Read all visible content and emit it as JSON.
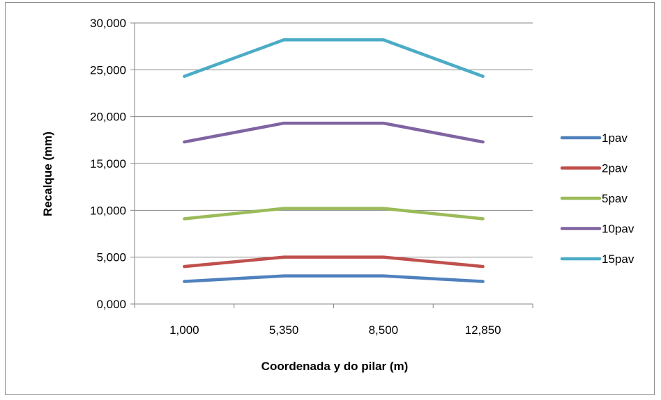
{
  "chart_data": {
    "type": "line",
    "title": "",
    "xlabel": "Coordenada y do pilar (m)",
    "ylabel": "Recalque (mm)",
    "categories": [
      "1,000",
      "5,350",
      "8,500",
      "12,850"
    ],
    "ylim": [
      0,
      30
    ],
    "yticks": [
      0,
      5,
      10,
      15,
      20,
      25,
      30
    ],
    "ytick_labels": [
      "0,000",
      "5,000",
      "10,000",
      "15,000",
      "20,000",
      "25,000",
      "30,000"
    ],
    "grid": "horizontal",
    "legend_position": "right",
    "series": [
      {
        "name": "1pav",
        "color": "#4f81bd",
        "values": [
          2.4,
          3.0,
          3.0,
          2.4
        ]
      },
      {
        "name": "2pav",
        "color": "#c0504d",
        "values": [
          4.0,
          5.0,
          5.0,
          4.0
        ]
      },
      {
        "name": "5pav",
        "color": "#9bbb59",
        "values": [
          9.1,
          10.2,
          10.2,
          9.1
        ]
      },
      {
        "name": "10pav",
        "color": "#8064a2",
        "values": [
          17.3,
          19.3,
          19.3,
          17.3
        ]
      },
      {
        "name": "15pav",
        "color": "#4bacc6",
        "values": [
          24.3,
          28.2,
          28.2,
          24.3
        ]
      }
    ]
  }
}
